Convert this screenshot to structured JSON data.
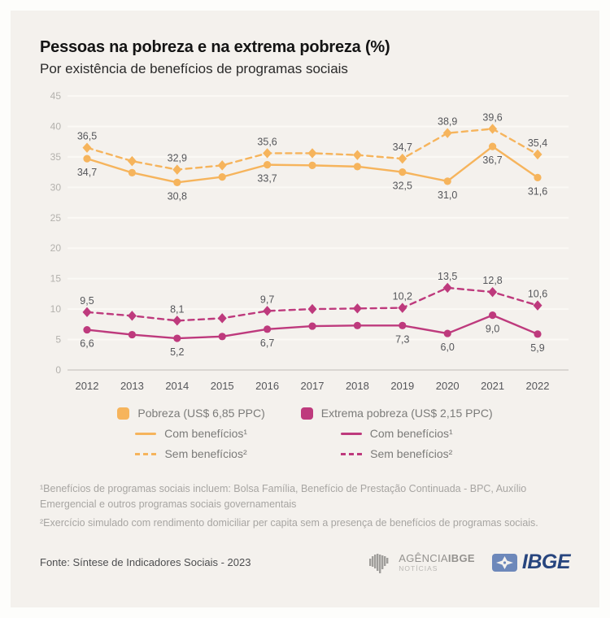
{
  "chart_data": {
    "type": "line",
    "title": "Pessoas na pobreza e na extrema pobreza (%)",
    "subtitle": "Por existência de benefícios de programas sociais",
    "x": [
      "2012",
      "2013",
      "2014",
      "2015",
      "2016",
      "2017",
      "2018",
      "2019",
      "2020",
      "2021",
      "2022"
    ],
    "ylim": [
      0,
      45
    ],
    "yticks": [
      0,
      5,
      10,
      15,
      20,
      25,
      30,
      35,
      40,
      45
    ],
    "grid": true,
    "legend_position": "bottom",
    "series": [
      {
        "id": "pobreza-sem-beneficios",
        "name": "Pobreza (US$ 6,85 PPC) - Sem benefícios²",
        "color": "#f6b45c",
        "dashed": true,
        "marker": "diamond",
        "label_position": "above",
        "values": [
          36.5,
          34.3,
          32.9,
          33.6,
          35.6,
          35.6,
          35.3,
          34.7,
          38.9,
          39.6,
          35.4
        ],
        "point_labels": [
          "36,5",
          null,
          "32,9",
          null,
          "35,6",
          null,
          null,
          "34,7",
          "38,9",
          "39,6",
          "35,4"
        ]
      },
      {
        "id": "pobreza-com-beneficios",
        "name": "Pobreza (US$ 6,85 PPC) - Com benefícios¹",
        "color": "#f6b45c",
        "dashed": false,
        "marker": "circle",
        "label_position": "below",
        "values": [
          34.7,
          32.4,
          30.8,
          31.7,
          33.7,
          33.6,
          33.4,
          32.5,
          31.0,
          36.7,
          31.6
        ],
        "point_labels": [
          "34,7",
          null,
          "30,8",
          null,
          "33,7",
          null,
          null,
          "32,5",
          "31,0",
          "36,7",
          "31,6"
        ]
      },
      {
        "id": "extrema-pobreza-sem-beneficios",
        "name": "Extrema pobreza (US$ 2,15 PPC) - Sem benefícios²",
        "color": "#be3a7d",
        "dashed": true,
        "marker": "diamond",
        "label_position": "above",
        "values": [
          9.5,
          8.9,
          8.1,
          8.5,
          9.7,
          10.0,
          10.1,
          10.2,
          13.5,
          12.8,
          10.6
        ],
        "point_labels": [
          "9,5",
          null,
          "8,1",
          null,
          "9,7",
          null,
          null,
          "10,2",
          "13,5",
          "12,8",
          "10,6"
        ]
      },
      {
        "id": "extrema-pobreza-com-beneficios",
        "name": "Extrema pobreza (US$ 2,15 PPC) - Com benefícios¹",
        "color": "#be3a7d",
        "dashed": false,
        "marker": "circle",
        "label_position": "below",
        "values": [
          6.6,
          5.8,
          5.2,
          5.5,
          6.7,
          7.2,
          7.3,
          7.3,
          6.0,
          9.0,
          5.9
        ],
        "point_labels": [
          "6,6",
          null,
          "5,2",
          null,
          "6,7",
          null,
          null,
          "7,3",
          "6,0",
          "9,0",
          "5,9"
        ]
      }
    ],
    "style": {
      "background": "#f4f1ed",
      "grid_color": "#fbf9f5",
      "axis_color": "#c9c7c3",
      "tick_label_color": "#b3b1ad",
      "x_label_color": "#55565a",
      "data_label_color": "#55565a"
    }
  },
  "legend": {
    "groups": [
      {
        "title": "Pobreza (US$ 6,85 PPC)",
        "color": "#f6b45c",
        "items": [
          {
            "label": "Com benefícios¹",
            "style": "solid"
          },
          {
            "label": "Sem benefícios²",
            "style": "dashed"
          }
        ]
      },
      {
        "title": "Extrema pobreza (US$ 2,15 PPC)",
        "color": "#be3a7d",
        "items": [
          {
            "label": "Com benefícios¹",
            "style": "solid"
          },
          {
            "label": "Sem benefícios²",
            "style": "dashed"
          }
        ]
      }
    ]
  },
  "footnotes": {
    "note1": "¹Benefícios de programas sociais incluem: Bolsa Família, Benefício de Prestação Continuada - BPC, Auxílio Emergencial e outros programas sociais governamentais",
    "note2": "²Exercício simulado com rendimento domiciliar per capita sem a presença de benefícios de programas sociais."
  },
  "footer": {
    "source": "Fonte: Síntese de Indicadores Sociais - 2023",
    "agencia_logo": {
      "line1_regular": "AGÊNCIA",
      "line1_bold": "IBGE",
      "line2": "NOTÍCIAS"
    },
    "ibge_logo": {
      "label": "IBGE",
      "text_color": "#27457e",
      "box_color": "#6d88ba"
    }
  }
}
